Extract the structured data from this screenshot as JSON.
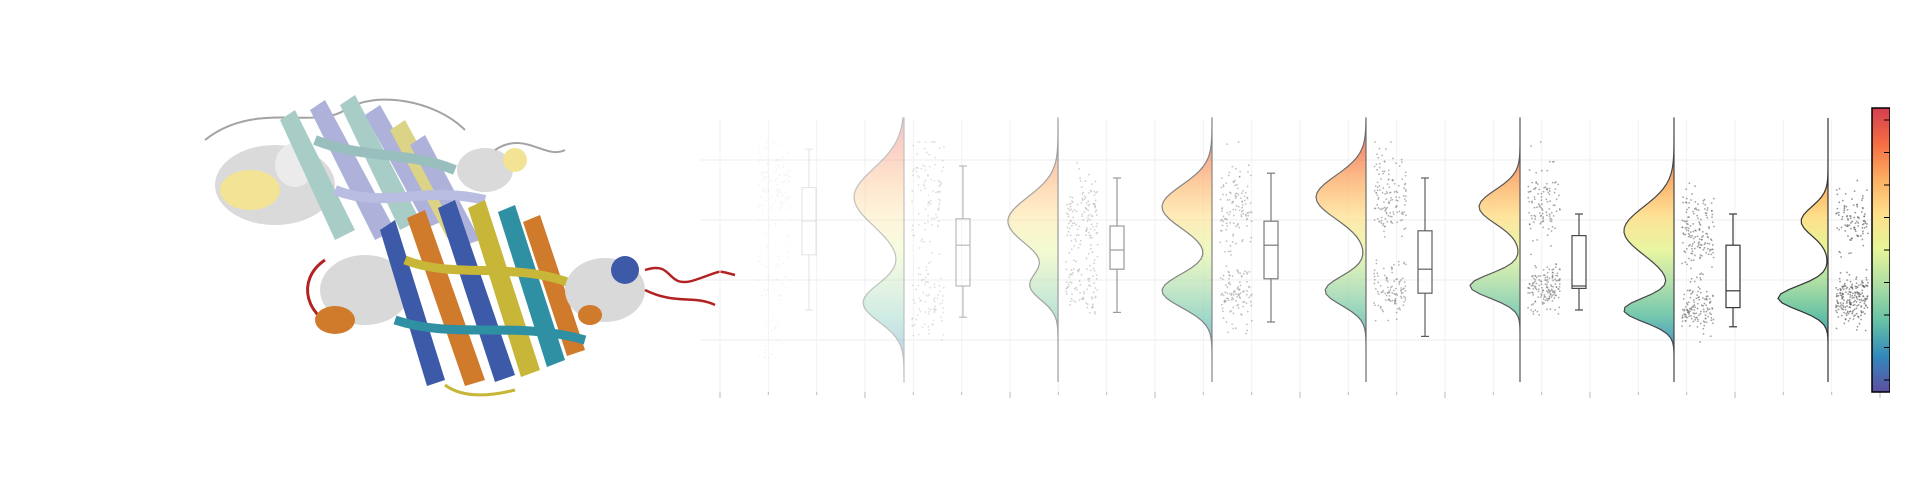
{
  "figure": {
    "protein_render": {
      "description_free": true,
      "upper_chain_colors": [
        "#9fc8c0",
        "#a6a9d6",
        "#d8cf7a",
        "#c9c9c9",
        "#f1e08a"
      ],
      "lower_chain_colors": [
        "#3d5aa8",
        "#d07a2c",
        "#c7b637",
        "#2f8fa3",
        "#b22222",
        "#cfcfcf"
      ]
    },
    "chart_data": {
      "type": "raincloud",
      "title": "",
      "xlabel": "",
      "ylabel": "",
      "groups": 8,
      "series": [
        {
          "modes": [
            0.35,
            0.78
          ],
          "weights": [
            0.55,
            0.45
          ],
          "spread": [
            0.18,
            0.09
          ],
          "median": 0.62,
          "q1": 0.48,
          "q3": 0.76,
          "whisker_low": 0.25,
          "whisker_high": 0.92,
          "opacity": 0.1
        },
        {
          "modes": [
            0.28,
            0.72
          ],
          "weights": [
            0.45,
            0.55
          ],
          "spread": [
            0.08,
            0.12
          ],
          "median": 0.52,
          "q1": 0.35,
          "q3": 0.63,
          "whisker_low": 0.22,
          "whisker_high": 0.85,
          "opacity": 0.3
        },
        {
          "modes": [
            0.35,
            0.62
          ],
          "weights": [
            0.35,
            0.65
          ],
          "spread": [
            0.06,
            0.1
          ],
          "median": 0.5,
          "q1": 0.42,
          "q3": 0.6,
          "whisker_low": 0.24,
          "whisker_high": 0.8,
          "opacity": 0.45
        },
        {
          "modes": [
            0.33,
            0.68
          ],
          "weights": [
            0.5,
            0.5
          ],
          "spread": [
            0.07,
            0.09
          ],
          "median": 0.52,
          "q1": 0.38,
          "q3": 0.62,
          "whisker_low": 0.2,
          "whisker_high": 0.82,
          "opacity": 0.6
        },
        {
          "modes": [
            0.33,
            0.72
          ],
          "weights": [
            0.45,
            0.55
          ],
          "spread": [
            0.06,
            0.09
          ],
          "median": 0.42,
          "q1": 0.32,
          "q3": 0.58,
          "whisker_low": 0.14,
          "whisker_high": 0.8,
          "opacity": 0.72
        },
        {
          "modes": [
            0.35,
            0.68
          ],
          "weights": [
            0.55,
            0.45
          ],
          "spread": [
            0.05,
            0.07
          ],
          "median": 0.35,
          "q1": 0.34,
          "q3": 0.56,
          "whisker_low": 0.25,
          "whisker_high": 0.65,
          "opacity": 0.82
        },
        {
          "modes": [
            0.25,
            0.58
          ],
          "weights": [
            0.5,
            0.5
          ],
          "spread": [
            0.05,
            0.1
          ],
          "median": 0.33,
          "q1": 0.26,
          "q3": 0.52,
          "whisker_low": 0.18,
          "whisker_high": 0.65,
          "opacity": 0.9
        },
        {
          "modes": [
            0.3,
            0.62
          ],
          "weights": [
            0.65,
            0.35
          ],
          "spread": [
            0.05,
            0.06
          ],
          "median": 0.32,
          "q1": 0.28,
          "q3": 0.45,
          "whisker_low": 0.15,
          "whisker_high": 0.62,
          "opacity": 1.0
        }
      ],
      "colormap": [
        "#5e4fa2",
        "#3288bd",
        "#66c2a5",
        "#abdda4",
        "#e6f598",
        "#fee08b",
        "#fdae61",
        "#f46d43",
        "#d53e4f"
      ],
      "colorbar_ticks": 9,
      "x_ticks_minor": 24
    }
  }
}
